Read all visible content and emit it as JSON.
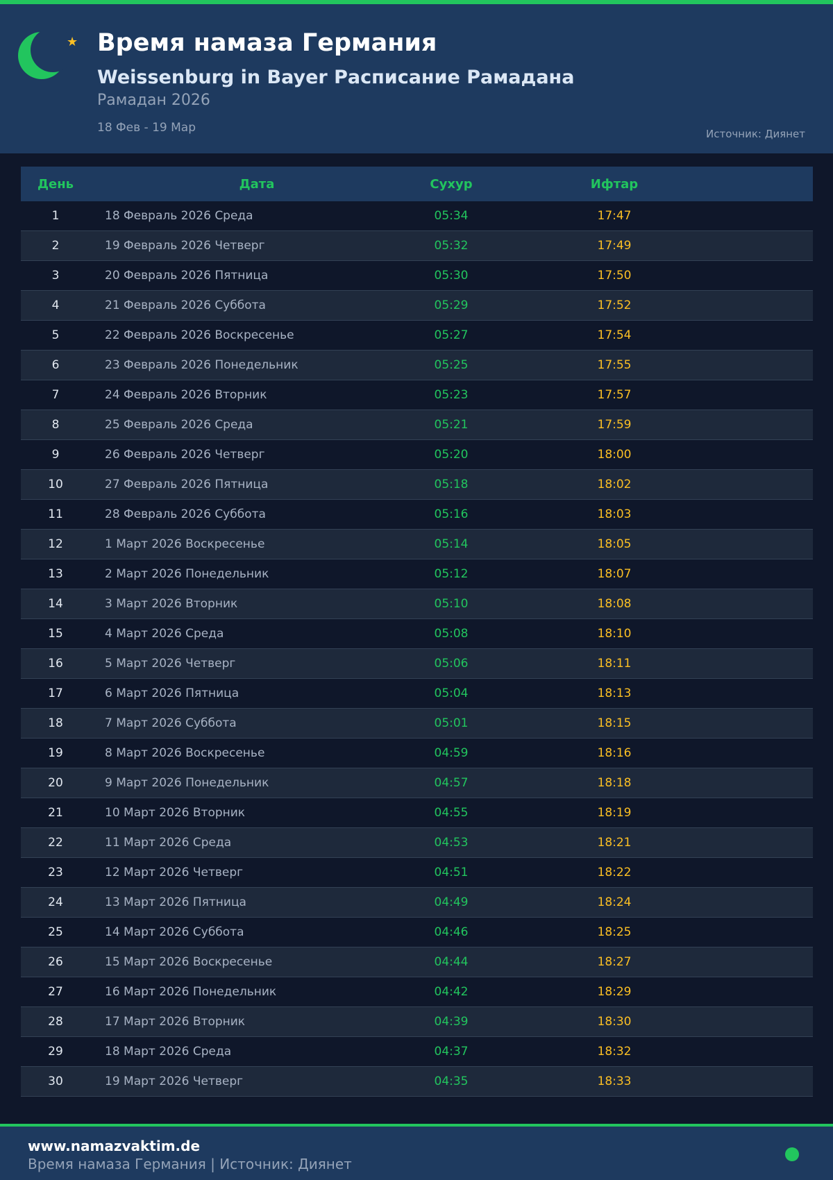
{
  "header": {
    "title": "Время намаза Германия",
    "subtitle": "Weissenburg in Bayer Расписание Рамадана",
    "year": "Рамадан 2026",
    "range": "18 Фев - 19 Мар",
    "source": "Источник: Диянет",
    "icon": "crescent-star-icon"
  },
  "table": {
    "columns": [
      "День",
      "Дата",
      "Сухур",
      "Ифтар"
    ],
    "rows": [
      [
        "1",
        "18 Февраль 2026 Среда",
        "05:34",
        "17:47"
      ],
      [
        "2",
        "19 Февраль 2026 Четверг",
        "05:32",
        "17:49"
      ],
      [
        "3",
        "20 Февраль 2026 Пятница",
        "05:30",
        "17:50"
      ],
      [
        "4",
        "21 Февраль 2026 Суббота",
        "05:29",
        "17:52"
      ],
      [
        "5",
        "22 Февраль 2026 Воскресенье",
        "05:27",
        "17:54"
      ],
      [
        "6",
        "23 Февраль 2026 Понедельник",
        "05:25",
        "17:55"
      ],
      [
        "7",
        "24 Февраль 2026 Вторник",
        "05:23",
        "17:57"
      ],
      [
        "8",
        "25 Февраль 2026 Среда",
        "05:21",
        "17:59"
      ],
      [
        "9",
        "26 Февраль 2026 Четверг",
        "05:20",
        "18:00"
      ],
      [
        "10",
        "27 Февраль 2026 Пятница",
        "05:18",
        "18:02"
      ],
      [
        "11",
        "28 Февраль 2026 Суббота",
        "05:16",
        "18:03"
      ],
      [
        "12",
        "1 Март 2026 Воскресенье",
        "05:14",
        "18:05"
      ],
      [
        "13",
        "2 Март 2026 Понедельник",
        "05:12",
        "18:07"
      ],
      [
        "14",
        "3 Март 2026 Вторник",
        "05:10",
        "18:08"
      ],
      [
        "15",
        "4 Март 2026 Среда",
        "05:08",
        "18:10"
      ],
      [
        "16",
        "5 Март 2026 Четверг",
        "05:06",
        "18:11"
      ],
      [
        "17",
        "6 Март 2026 Пятница",
        "05:04",
        "18:13"
      ],
      [
        "18",
        "7 Март 2026 Суббота",
        "05:01",
        "18:15"
      ],
      [
        "19",
        "8 Март 2026 Воскресенье",
        "04:59",
        "18:16"
      ],
      [
        "20",
        "9 Март 2026 Понедельник",
        "04:57",
        "18:18"
      ],
      [
        "21",
        "10 Март 2026 Вторник",
        "04:55",
        "18:19"
      ],
      [
        "22",
        "11 Март 2026 Среда",
        "04:53",
        "18:21"
      ],
      [
        "23",
        "12 Март 2026 Четверг",
        "04:51",
        "18:22"
      ],
      [
        "24",
        "13 Март 2026 Пятница",
        "04:49",
        "18:24"
      ],
      [
        "25",
        "14 Март 2026 Суббота",
        "04:46",
        "18:25"
      ],
      [
        "26",
        "15 Март 2026 Воскресенье",
        "04:44",
        "18:27"
      ],
      [
        "27",
        "16 Март 2026 Понедельник",
        "04:42",
        "18:29"
      ],
      [
        "28",
        "17 Март 2026 Вторник",
        "04:39",
        "18:30"
      ],
      [
        "29",
        "18 Март 2026 Среда",
        "04:37",
        "18:32"
      ],
      [
        "30",
        "19 Март 2026 Четверг",
        "04:35",
        "18:33"
      ]
    ]
  },
  "footer": {
    "site": "www.namazvaktim.de",
    "text": "Время намаза Германия | Источник: Диянет"
  },
  "colors": {
    "accent": "#22c55e",
    "iftar": "#fbbf24",
    "header_bg": "#1e3a5f",
    "page_bg": "#0f172a"
  }
}
